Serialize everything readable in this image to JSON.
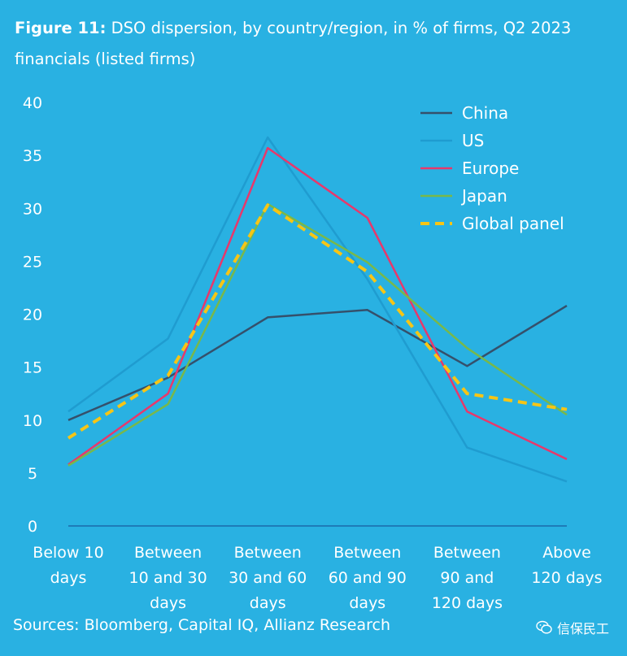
{
  "title": {
    "figure_label": "Figure 11:",
    "text": "DSO dispersion, by country/region, in % of firms, Q2 2023 financials (listed firms)"
  },
  "source": "Sources: Bloomberg, Capital IQ, Allianz Research",
  "watermark": {
    "text": "信保民工",
    "icon": "wechat-icon"
  },
  "chart_data": {
    "type": "line",
    "categories": [
      [
        "Below 10",
        "days"
      ],
      [
        "Between",
        "10 and 30",
        "days"
      ],
      [
        "Between",
        "30 and 60",
        "days"
      ],
      [
        "Between",
        "60 and 90",
        "days"
      ],
      [
        "Between",
        "90 and",
        "120 days"
      ],
      [
        "Above",
        "120 days"
      ]
    ],
    "ylim": [
      0,
      40
    ],
    "yticks": [
      0,
      5,
      10,
      15,
      20,
      25,
      30,
      35,
      40
    ],
    "grid": false,
    "legend_position": "top-right",
    "series": [
      {
        "name": "China",
        "color": "#35506b",
        "dashed": false,
        "values": [
          10,
          14,
          19.7,
          20.4,
          15.1,
          20.8
        ]
      },
      {
        "name": "US",
        "color": "#1f9cd0",
        "dashed": false,
        "values": [
          10.8,
          17.7,
          36.7,
          23.3,
          7.4,
          4.2
        ]
      },
      {
        "name": "Europe",
        "color": "#e8386b",
        "dashed": false,
        "values": [
          5.8,
          12.5,
          35.7,
          29.1,
          10.8,
          6.3
        ]
      },
      {
        "name": "Japan",
        "color": "#78b84a",
        "dashed": false,
        "values": [
          5.7,
          11.5,
          30.4,
          24.9,
          16.8,
          10.5
        ]
      },
      {
        "name": "Global panel",
        "color": "#f7c515",
        "dashed": true,
        "values": [
          8.3,
          14.2,
          30.3,
          24.0,
          12.5,
          11.0
        ]
      }
    ]
  }
}
